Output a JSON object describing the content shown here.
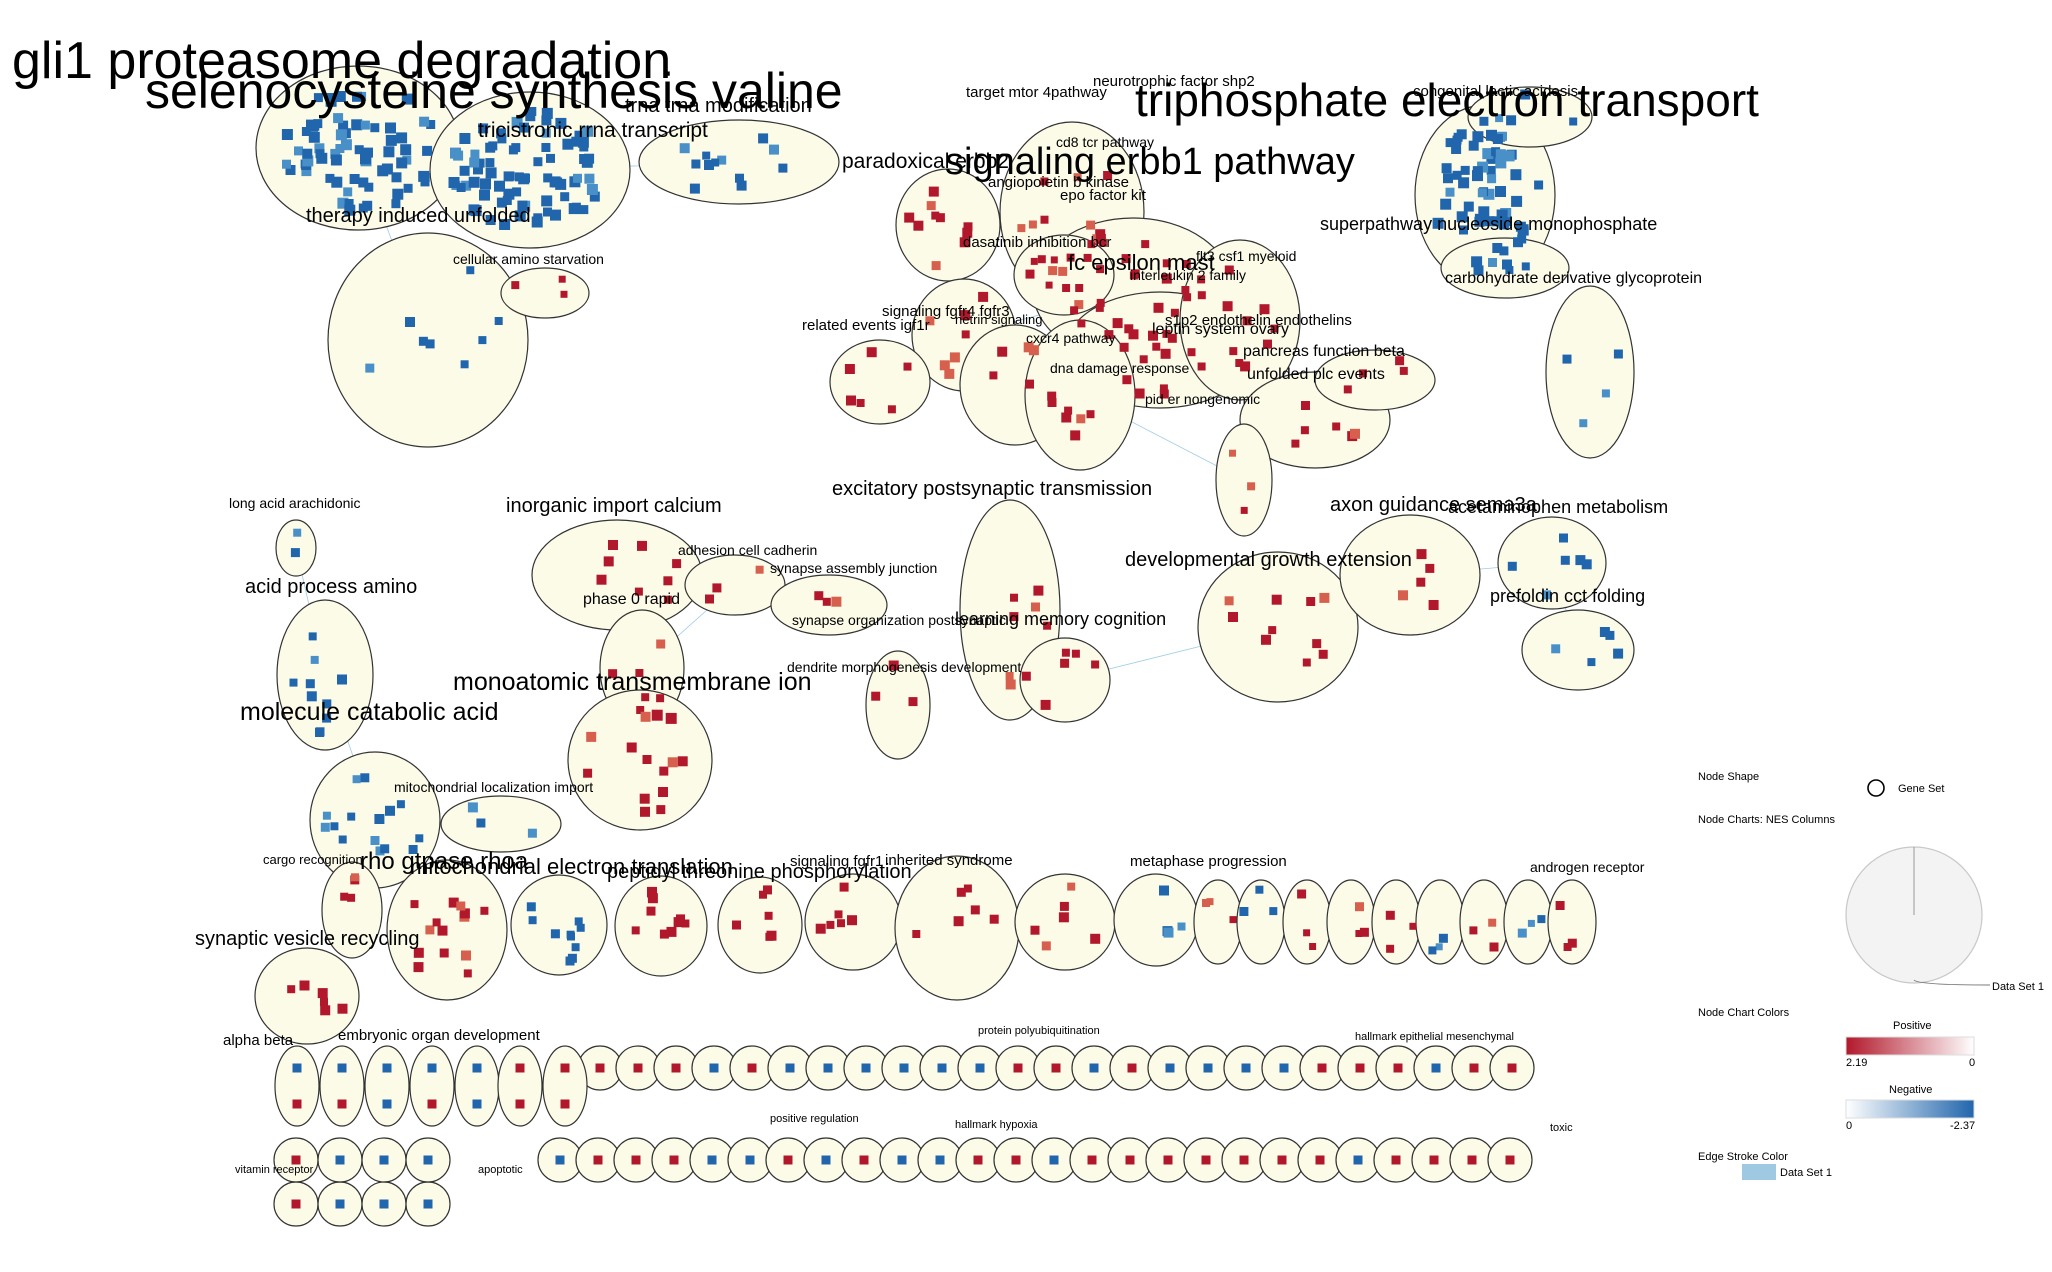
{
  "colors": {
    "positive": "#b2182b",
    "negative": "#2166ac",
    "light_negative": "#4a90c8",
    "light_positive": "#d6604d",
    "cluster_fill": "#fcfbe8",
    "edge": "#8ec4e0"
  },
  "labels": {
    "big": [
      "gli1 proteasome degradation",
      "selenocysteine synthesis valine",
      "triphosphate electron transport",
      "signaling erbb1 pathway"
    ],
    "medium": [
      "trna trna modification",
      "tricistronic rrna transcript",
      "therapy induced unfolded",
      "paradoxical erbb2",
      "fc epsilon mast",
      "superpathway nucleoside monophosphate",
      "inorganic import calcium",
      "excitatory postsynaptic transmission",
      "axon guidance sema3a",
      "acetaminophen metabolism",
      "developmental growth extension",
      "acid process amino",
      "prefoldin cct folding",
      "learning memory cognition",
      "monoatomic transmembrane ion",
      "molecule catabolic acid",
      "rho gtpase rhoa",
      "mitochondrial electron translation",
      "peptidyl threonine phosphorylation",
      "synaptic vesicle recycling",
      "embryonic organ development"
    ],
    "small": [
      "target mtor 4pathway",
      "neurotrophic factor shp2",
      "congenital lactic acidosis",
      "cd8 tcr pathway",
      "angiopoietin b kinase",
      "epo factor kit",
      "dasatinib inhibition bcr",
      "flt3 csf1 myeloid",
      "interleukin 2 family",
      "carbohydrate derivative glycoprotein",
      "cellular amino starvation",
      "signaling fgfr4 fgfr3",
      "related events igf1r",
      "netrin signaling",
      "s1p2 endothelin endothelins",
      "leptin system ovary",
      "cxcr4 pathway",
      "pancreas function beta",
      "unfolded plc events",
      "dna damage response",
      "pid er nongenomic",
      "long acid arachidonic",
      "adhesion cell cadherin",
      "synapse assembly junction",
      "phase 0 rapid",
      "synapse organization postsynaptic",
      "dendrite morphogenesis development",
      "mitochondrial localization import",
      "cargo recognition",
      "signaling fgfr1",
      "inherited syndrome",
      "metaphase progression",
      "androgen receptor",
      "protein polyubiquitination",
      "hallmark epithelial mesenchymal",
      "alpha beta",
      "hallmark hypoxia",
      "positive regulation",
      "vitamin receptor",
      "apoptotic",
      "toxic"
    ]
  },
  "legend": {
    "node_shape_title": "Node Shape",
    "node_shape_item": "Gene Set",
    "node_charts_title": "Node Charts: NES Columns",
    "pie_label": "Data Set 1",
    "node_chart_colors_title": "Node Chart Colors",
    "positive_label": "Positive",
    "positive_min": "2.19",
    "positive_max": "0",
    "negative_label": "Negative",
    "negative_min": "0",
    "negative_max": "-2.37",
    "edge_stroke_title": "Edge Stroke Color",
    "edge_item": "Data Set 1"
  }
}
